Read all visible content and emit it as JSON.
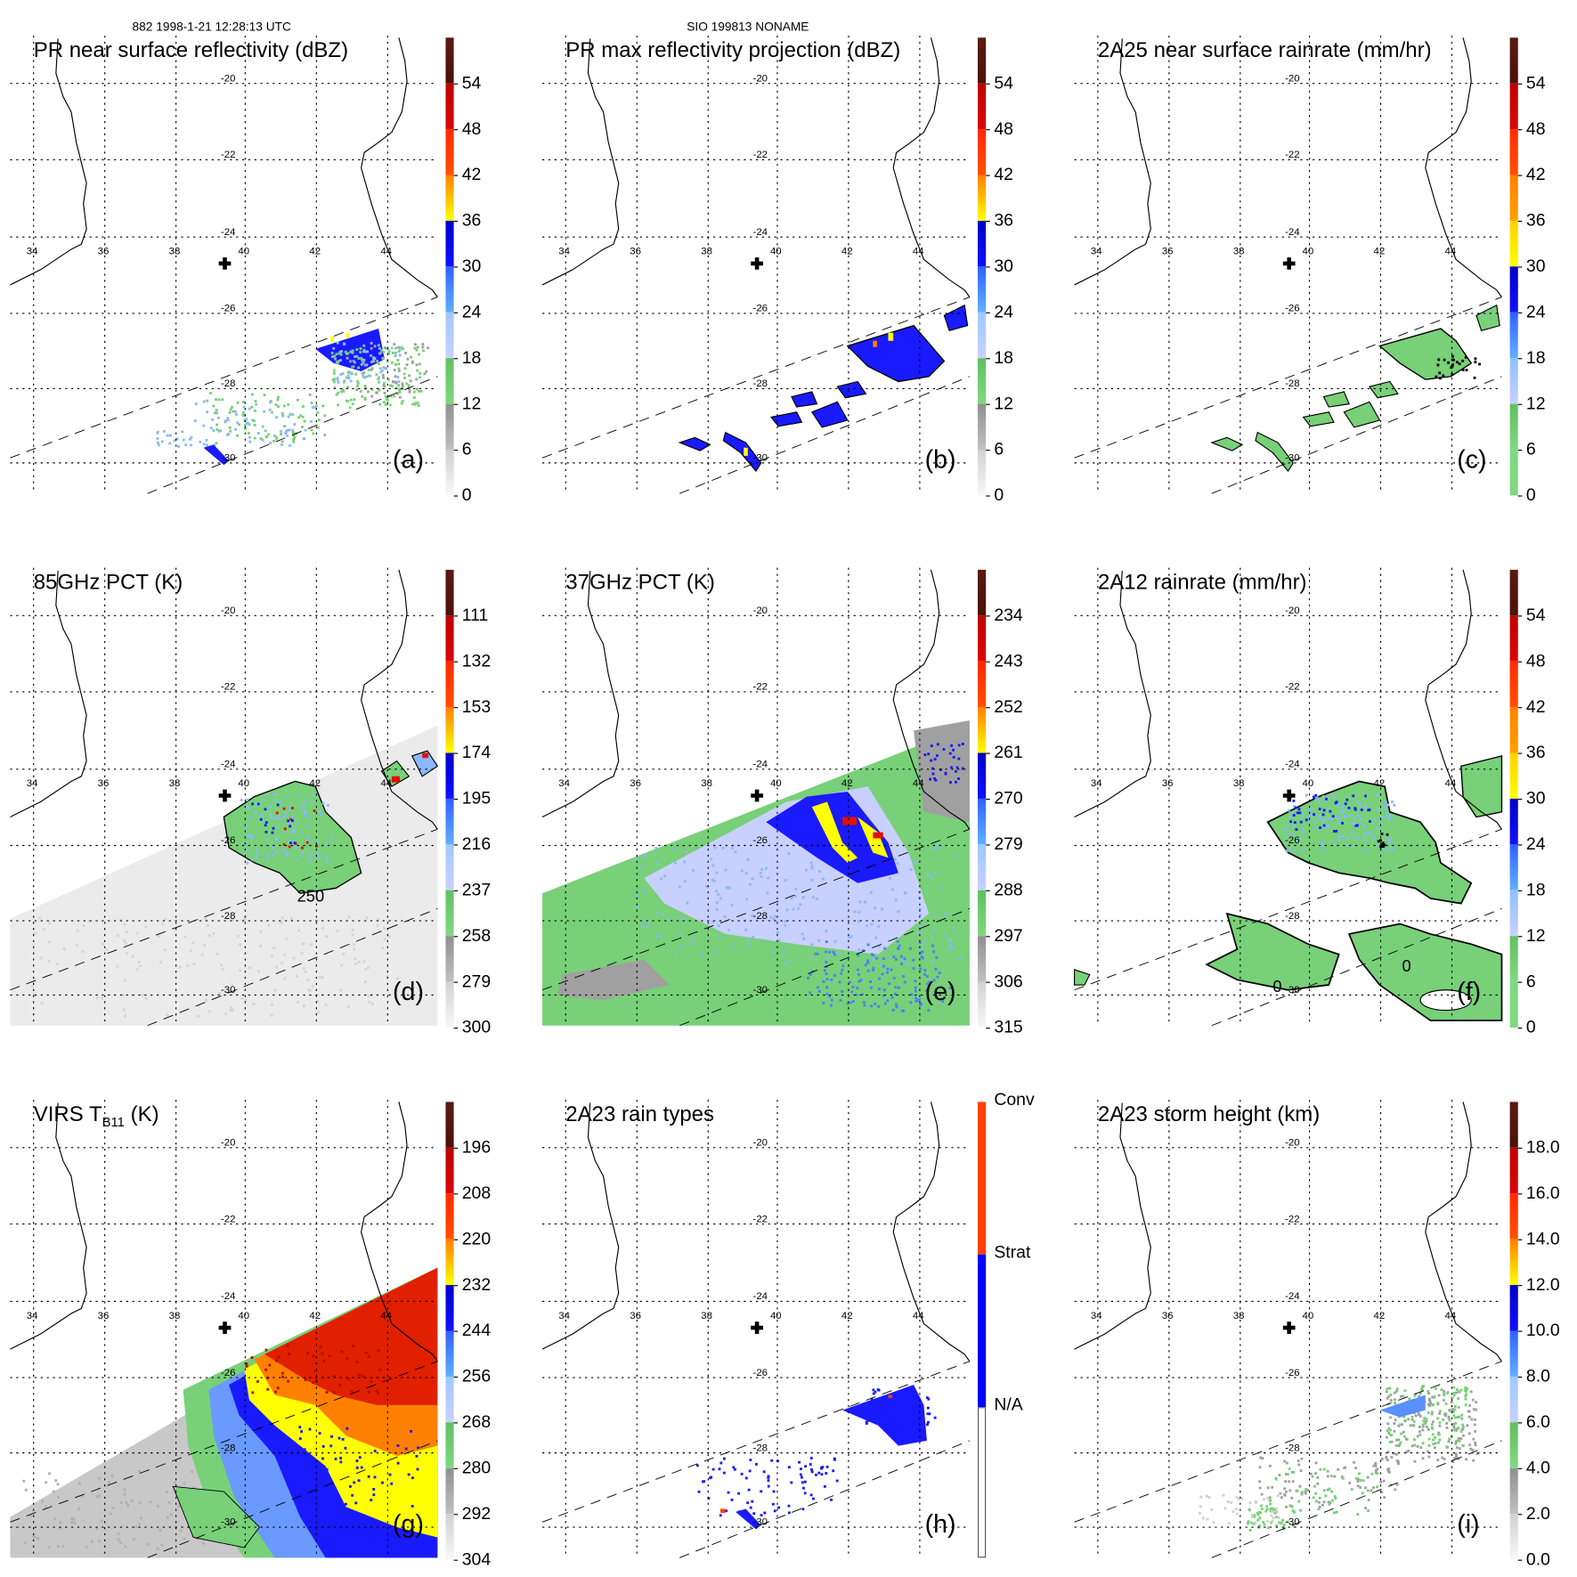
{
  "header": {
    "left": "882 1998-1-21 12:28:13 UTC",
    "center": "SIO 199813 NONAME"
  },
  "map": {
    "lon_labels": [
      "34",
      "36",
      "38",
      "40",
      "42",
      "44"
    ],
    "lat_labels": [
      "-20",
      "-22",
      "-24",
      "-26",
      "-28",
      "-30"
    ],
    "center_marker": "cross-icon"
  },
  "palettes": {
    "standard": [
      [
        "#5a1a12",
        "#4a1208"
      ],
      [
        "#c00000",
        "#d80808"
      ],
      [
        "#ff2800",
        "#ff5000"
      ],
      [
        "#ff8000",
        "#ffff00"
      ],
      [
        "#0000c8",
        "#1010ff"
      ],
      [
        "#3060ff",
        "#60b0ff"
      ],
      [
        "#a0c8ff",
        "#c8d0ff"
      ],
      [
        "#60c060",
        "#80d880"
      ],
      [
        "#909090",
        "#c0c0c0"
      ],
      [
        "#d0d0d0",
        "#f8f8f8"
      ]
    ],
    "rain": [
      [
        "#5a1a12",
        "#4a1208"
      ],
      [
        "#c00000",
        "#d80808"
      ],
      [
        "#ff2800",
        "#ff5000"
      ],
      [
        "#ff8000",
        "#ffa000"
      ],
      [
        "#ffd000",
        "#ffff00"
      ],
      [
        "#0000c8",
        "#1010ff"
      ],
      [
        "#3060ff",
        "#60b0ff"
      ],
      [
        "#90c0ff",
        "#c8d0ff"
      ],
      [
        "#60c060",
        "#80d880"
      ],
      [
        "#80d880",
        "#80d880"
      ]
    ],
    "types": [
      "#ff4000",
      "#0000ff",
      "#ffffff"
    ]
  },
  "panels": [
    {
      "title": "PR near surface reflectivity (dBZ)",
      "letter": "(a)",
      "palette": "standard",
      "labels": [
        "54",
        "48",
        "42",
        "36",
        "30",
        "24",
        "18",
        "12",
        "6",
        "0"
      ]
    },
    {
      "title": "PR max reflectivity projection (dBZ)",
      "letter": "(b)",
      "palette": "standard",
      "labels": [
        "54",
        "48",
        "42",
        "36",
        "30",
        "24",
        "18",
        "12",
        "6",
        "0"
      ]
    },
    {
      "title": "2A25 near surface rainrate (mm/hr)",
      "letter": "(c)",
      "palette": "rain",
      "labels": [
        "54",
        "48",
        "42",
        "36",
        "30",
        "24",
        "18",
        "12",
        "6",
        "0"
      ]
    },
    {
      "title": "85GHz PCT (K)",
      "letter": "(d)",
      "palette": "standard",
      "labels": [
        "111",
        "132",
        "153",
        "174",
        "195",
        "216",
        "237",
        "258",
        "279",
        "300"
      ],
      "contours": [
        "250"
      ]
    },
    {
      "title": "37GHz PCT (K)",
      "letter": "(e)",
      "palette": "standard",
      "labels": [
        "234",
        "243",
        "252",
        "261",
        "270",
        "279",
        "288",
        "297",
        "306",
        "315"
      ]
    },
    {
      "title": "2A12 rainrate (mm/hr)",
      "letter": "(f)",
      "palette": "rain",
      "labels": [
        "54",
        "48",
        "42",
        "36",
        "30",
        "24",
        "18",
        "12",
        "6",
        "0"
      ],
      "contours": [
        "0",
        "0"
      ]
    },
    {
      "title": "VIRS T",
      "title_sub": "B11",
      "title_unit": " (K)",
      "letter": "(g)",
      "palette": "standard",
      "labels": [
        "196",
        "208",
        "220",
        "232",
        "244",
        "256",
        "268",
        "280",
        "292",
        "304"
      ]
    },
    {
      "title": "2A23 rain types",
      "letter": "(h)",
      "palette": "types",
      "labels": [
        "Conv",
        "Strat",
        "N/A"
      ]
    },
    {
      "title": "2A23 storm height (km)",
      "letter": "(i)",
      "palette": "standard",
      "labels": [
        "18.0",
        "16.0",
        "14.0",
        "12.0",
        "10.0",
        "8.0",
        "6.0",
        "4.0",
        "2.0",
        "0.0"
      ]
    }
  ]
}
